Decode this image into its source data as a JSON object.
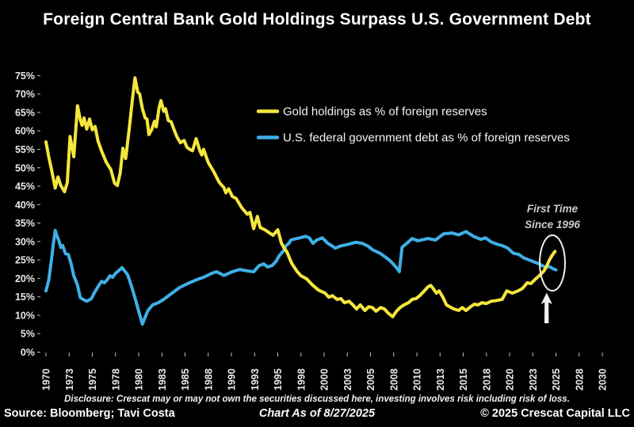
{
  "title": "Foreign Central Bank Gold Holdings Surpass U.S. Government Debt",
  "legend": {
    "gold": "Gold holdings as % of foreign reserves",
    "debt": "U.S. federal government debt as % of foreign reserves"
  },
  "annotation": {
    "line1": "First Time",
    "line2": "Since 1996"
  },
  "footer": {
    "disclosure": "Disclosure: Crescat may or may not own the securities discussed here, investing involves risk including risk of loss.",
    "source": "Source: Bloomberg; Tavi Costa",
    "as_of": "Chart As of 8/27/2025",
    "copyright": "© 2025 Crescat Capital LLC"
  },
  "colors": {
    "background": "#000000",
    "gold": "#f5e63d",
    "debt": "#3fafe6",
    "text": "#ffffff",
    "axis_text": "#e9e9e9",
    "annotation_text": "#cccccc",
    "tick_mark": "#bbbbbb"
  },
  "chart_data": {
    "type": "line",
    "title": "Foreign Central Bank Gold Holdings Surpass U.S. Government Debt",
    "xlabel": "",
    "ylabel": "",
    "grid": false,
    "legend_position": "upper right inside plot",
    "x_axis": {
      "min": 1970,
      "max": 2030,
      "tick_positions": [
        1970,
        1972.5,
        1975,
        1977.5,
        1980,
        1982.5,
        1985,
        1987.5,
        1990,
        1992.5,
        1995,
        1997.5,
        2000,
        2002.5,
        2005,
        2007.5,
        2010,
        2012.5,
        2015,
        2017.5,
        2020,
        2022.5,
        2025,
        2027.5,
        2030
      ],
      "tick_labels": [
        "1970",
        "1973",
        "1975",
        "1978",
        "1980",
        "1983",
        "1985",
        "1988",
        "1990",
        "1993",
        "1995",
        "1998",
        "2000",
        "2003",
        "2005",
        "2008",
        "2010",
        "2013",
        "2015",
        "2018",
        "2020",
        "2023",
        "2025",
        "2028",
        "2030"
      ]
    },
    "y_axis": {
      "min": 0,
      "max": 75,
      "tick_step": 5,
      "tick_values": [
        0,
        5,
        10,
        15,
        20,
        25,
        30,
        35,
        40,
        45,
        50,
        55,
        60,
        65,
        70,
        75
      ],
      "tick_labels": [
        "0%",
        "5%",
        "10%",
        "15%",
        "20%",
        "25%",
        "30%",
        "35%",
        "40%",
        "45%",
        "50%",
        "55%",
        "60%",
        "65%",
        "70%",
        "75%"
      ]
    },
    "series": [
      {
        "name": "Gold holdings as % of foreign reserves",
        "color_key": "gold",
        "points": [
          [
            1970.0,
            57.0
          ],
          [
            1970.3,
            53.0
          ],
          [
            1970.6,
            49.5
          ],
          [
            1971.0,
            44.5
          ],
          [
            1971.3,
            47.5
          ],
          [
            1971.6,
            45.2
          ],
          [
            1972.0,
            43.5
          ],
          [
            1972.3,
            46.0
          ],
          [
            1972.6,
            58.5
          ],
          [
            1973.0,
            53.0
          ],
          [
            1973.4,
            66.8
          ],
          [
            1973.7,
            63.0
          ],
          [
            1973.9,
            61.5
          ],
          [
            1974.1,
            63.5
          ],
          [
            1974.4,
            60.5
          ],
          [
            1974.7,
            63.2
          ],
          [
            1975.0,
            60.3
          ],
          [
            1975.3,
            61.2
          ],
          [
            1975.6,
            57.4
          ],
          [
            1976.0,
            54.5
          ],
          [
            1976.5,
            51.5
          ],
          [
            1977.0,
            49.5
          ],
          [
            1977.4,
            45.8
          ],
          [
            1977.7,
            45.2
          ],
          [
            1978.0,
            48.5
          ],
          [
            1978.3,
            55.3
          ],
          [
            1978.6,
            52.5
          ],
          [
            1979.0,
            61.0
          ],
          [
            1979.3,
            68.0
          ],
          [
            1979.6,
            74.4
          ],
          [
            1979.9,
            70.5
          ],
          [
            1980.1,
            70.0
          ],
          [
            1980.4,
            66.0
          ],
          [
            1980.7,
            63.5
          ],
          [
            1980.9,
            63.2
          ],
          [
            1981.1,
            59.0
          ],
          [
            1981.4,
            60.3
          ],
          [
            1981.7,
            62.6
          ],
          [
            1981.9,
            61.1
          ],
          [
            1982.2,
            66.2
          ],
          [
            1982.4,
            68.2
          ],
          [
            1982.7,
            65.3
          ],
          [
            1982.9,
            66.0
          ],
          [
            1983.2,
            62.8
          ],
          [
            1983.5,
            62.5
          ],
          [
            1983.8,
            60.4
          ],
          [
            1984.1,
            58.5
          ],
          [
            1984.5,
            56.8
          ],
          [
            1984.9,
            57.4
          ],
          [
            1985.2,
            55.6
          ],
          [
            1985.5,
            55.0
          ],
          [
            1985.8,
            54.6
          ],
          [
            1986.2,
            57.9
          ],
          [
            1986.6,
            54.6
          ],
          [
            1986.8,
            53.5
          ],
          [
            1987.0,
            55.0
          ],
          [
            1987.5,
            51.4
          ],
          [
            1988.1,
            48.9
          ],
          [
            1988.7,
            46.0
          ],
          [
            1989.2,
            44.6
          ],
          [
            1989.4,
            43.2
          ],
          [
            1989.7,
            44.3
          ],
          [
            1990.1,
            42.2
          ],
          [
            1990.5,
            41.7
          ],
          [
            1991.1,
            39.2
          ],
          [
            1991.7,
            37.4
          ],
          [
            1992.0,
            37.9
          ],
          [
            1992.4,
            33.5
          ],
          [
            1992.8,
            36.8
          ],
          [
            1993.1,
            33.8
          ],
          [
            1993.6,
            33.2
          ],
          [
            1994.0,
            32.5
          ],
          [
            1994.5,
            31.7
          ],
          [
            1995.0,
            33.2
          ],
          [
            1995.4,
            29.5
          ],
          [
            1995.7,
            28.2
          ],
          [
            1996.0,
            27.1
          ],
          [
            1996.5,
            24.1
          ],
          [
            1997.1,
            21.8
          ],
          [
            1997.5,
            20.7
          ],
          [
            1998.1,
            19.9
          ],
          [
            1998.7,
            18.3
          ],
          [
            1999.4,
            16.8
          ],
          [
            2000.1,
            16.0
          ],
          [
            2000.5,
            14.9
          ],
          [
            2000.9,
            15.3
          ],
          [
            2001.4,
            14.3
          ],
          [
            2001.8,
            14.5
          ],
          [
            2002.2,
            13.4
          ],
          [
            2002.7,
            13.8
          ],
          [
            2003.1,
            12.8
          ],
          [
            2003.5,
            11.7
          ],
          [
            2003.9,
            12.8
          ],
          [
            2004.4,
            11.3
          ],
          [
            2004.8,
            12.3
          ],
          [
            2005.2,
            12.1
          ],
          [
            2005.6,
            11.1
          ],
          [
            2006.1,
            12.1
          ],
          [
            2006.5,
            11.7
          ],
          [
            2006.9,
            10.6
          ],
          [
            2007.4,
            9.6
          ],
          [
            2007.8,
            11.1
          ],
          [
            2008.2,
            12.1
          ],
          [
            2008.6,
            12.8
          ],
          [
            2009.1,
            13.4
          ],
          [
            2009.5,
            14.3
          ],
          [
            2009.9,
            14.5
          ],
          [
            2010.3,
            15.3
          ],
          [
            2010.8,
            16.6
          ],
          [
            2011.2,
            17.7
          ],
          [
            2011.5,
            18.1
          ],
          [
            2011.8,
            17.1
          ],
          [
            2012.1,
            16.0
          ],
          [
            2012.4,
            16.6
          ],
          [
            2012.8,
            14.9
          ],
          [
            2013.2,
            12.8
          ],
          [
            2013.7,
            12.1
          ],
          [
            2014.0,
            11.7
          ],
          [
            2014.5,
            11.3
          ],
          [
            2014.9,
            12.1
          ],
          [
            2015.3,
            11.3
          ],
          [
            2015.8,
            12.3
          ],
          [
            2016.2,
            13.0
          ],
          [
            2016.6,
            12.8
          ],
          [
            2017.0,
            13.4
          ],
          [
            2017.5,
            13.2
          ],
          [
            2018.0,
            13.8
          ],
          [
            2018.6,
            14.0
          ],
          [
            2019.2,
            14.3
          ],
          [
            2019.7,
            16.6
          ],
          [
            2020.3,
            16.0
          ],
          [
            2020.9,
            16.6
          ],
          [
            2021.4,
            17.3
          ],
          [
            2021.9,
            18.8
          ],
          [
            2022.3,
            18.6
          ],
          [
            2022.7,
            19.6
          ],
          [
            2023.2,
            20.7
          ],
          [
            2023.7,
            22.0
          ],
          [
            2024.0,
            23.3
          ],
          [
            2024.3,
            25.0
          ],
          [
            2024.6,
            26.3
          ],
          [
            2024.9,
            27.3
          ]
        ]
      },
      {
        "name": "U.S. federal government debt as % of foreign reserves",
        "color_key": "debt",
        "points": [
          [
            1970.0,
            16.6
          ],
          [
            1970.3,
            19.5
          ],
          [
            1970.6,
            25.2
          ],
          [
            1970.8,
            29.5
          ],
          [
            1971.0,
            33.0
          ],
          [
            1971.2,
            31.4
          ],
          [
            1971.4,
            30.2
          ],
          [
            1971.6,
            28.4
          ],
          [
            1971.8,
            28.9
          ],
          [
            1972.1,
            26.7
          ],
          [
            1972.4,
            26.5
          ],
          [
            1972.7,
            24.1
          ],
          [
            1973.0,
            20.7
          ],
          [
            1973.2,
            19.5
          ],
          [
            1973.4,
            18.1
          ],
          [
            1973.7,
            14.8
          ],
          [
            1974.0,
            14.3
          ],
          [
            1974.4,
            13.8
          ],
          [
            1974.9,
            14.5
          ],
          [
            1975.2,
            16.0
          ],
          [
            1975.7,
            18.1
          ],
          [
            1976.0,
            19.2
          ],
          [
            1976.3,
            18.8
          ],
          [
            1976.6,
            19.6
          ],
          [
            1976.9,
            20.7
          ],
          [
            1977.2,
            20.3
          ],
          [
            1977.5,
            21.4
          ],
          [
            1977.8,
            22.0
          ],
          [
            1978.2,
            22.9
          ],
          [
            1978.5,
            22.0
          ],
          [
            1978.8,
            21.0
          ],
          [
            1979.1,
            18.8
          ],
          [
            1979.4,
            16.4
          ],
          [
            1979.7,
            13.8
          ],
          [
            1980.0,
            11.1
          ],
          [
            1980.4,
            7.6
          ],
          [
            1980.7,
            9.5
          ],
          [
            1981.0,
            11.3
          ],
          [
            1981.5,
            12.8
          ],
          [
            1982.1,
            13.4
          ],
          [
            1982.7,
            14.3
          ],
          [
            1983.6,
            16.0
          ],
          [
            1984.4,
            17.5
          ],
          [
            1985.3,
            18.6
          ],
          [
            1986.2,
            19.6
          ],
          [
            1987.0,
            20.3
          ],
          [
            1987.9,
            21.4
          ],
          [
            1988.4,
            21.8
          ],
          [
            1989.2,
            20.8
          ],
          [
            1990.1,
            21.8
          ],
          [
            1990.9,
            22.4
          ],
          [
            1991.8,
            22.0
          ],
          [
            1992.4,
            21.8
          ],
          [
            1993.0,
            23.5
          ],
          [
            1993.5,
            23.9
          ],
          [
            1993.9,
            23.1
          ],
          [
            1994.4,
            23.5
          ],
          [
            1994.8,
            24.6
          ],
          [
            1995.2,
            26.3
          ],
          [
            1995.6,
            27.4
          ],
          [
            1995.9,
            28.9
          ],
          [
            1996.2,
            29.5
          ],
          [
            1996.4,
            30.4
          ],
          [
            1996.7,
            30.6
          ],
          [
            1997.4,
            31.0
          ],
          [
            1998.0,
            31.4
          ],
          [
            1998.4,
            31.0
          ],
          [
            1998.8,
            29.5
          ],
          [
            1999.2,
            30.4
          ],
          [
            1999.8,
            31.0
          ],
          [
            2000.4,
            29.5
          ],
          [
            2000.8,
            28.9
          ],
          [
            2001.2,
            28.2
          ],
          [
            2001.8,
            28.8
          ],
          [
            2002.7,
            29.3
          ],
          [
            2003.4,
            29.8
          ],
          [
            2004.1,
            29.5
          ],
          [
            2004.7,
            28.8
          ],
          [
            2005.2,
            27.8
          ],
          [
            2006.1,
            26.7
          ],
          [
            2006.7,
            25.6
          ],
          [
            2007.2,
            24.6
          ],
          [
            2007.8,
            22.9
          ],
          [
            2008.1,
            21.8
          ],
          [
            2008.4,
            28.4
          ],
          [
            2008.9,
            29.5
          ],
          [
            2009.5,
            30.8
          ],
          [
            2010.1,
            30.2
          ],
          [
            2011.2,
            30.8
          ],
          [
            2012.0,
            30.4
          ],
          [
            2012.9,
            32.1
          ],
          [
            2013.8,
            32.3
          ],
          [
            2014.5,
            31.8
          ],
          [
            2015.3,
            32.7
          ],
          [
            2016.1,
            31.4
          ],
          [
            2016.9,
            30.6
          ],
          [
            2017.4,
            31.0
          ],
          [
            2018.0,
            29.9
          ],
          [
            2018.6,
            29.3
          ],
          [
            2019.2,
            28.9
          ],
          [
            2019.8,
            28.2
          ],
          [
            2020.4,
            26.8
          ],
          [
            2021.0,
            26.5
          ],
          [
            2021.5,
            25.6
          ],
          [
            2022.1,
            25.0
          ],
          [
            2022.7,
            24.4
          ],
          [
            2023.2,
            23.9
          ],
          [
            2023.8,
            23.1
          ],
          [
            2024.3,
            23.2
          ],
          [
            2024.7,
            22.6
          ],
          [
            2025.0,
            22.3
          ]
        ]
      }
    ],
    "annotations": [
      {
        "text": "First Time Since 1996",
        "target_year": 2025,
        "target_value": 24,
        "marker": "ellipse + up arrow"
      }
    ]
  }
}
